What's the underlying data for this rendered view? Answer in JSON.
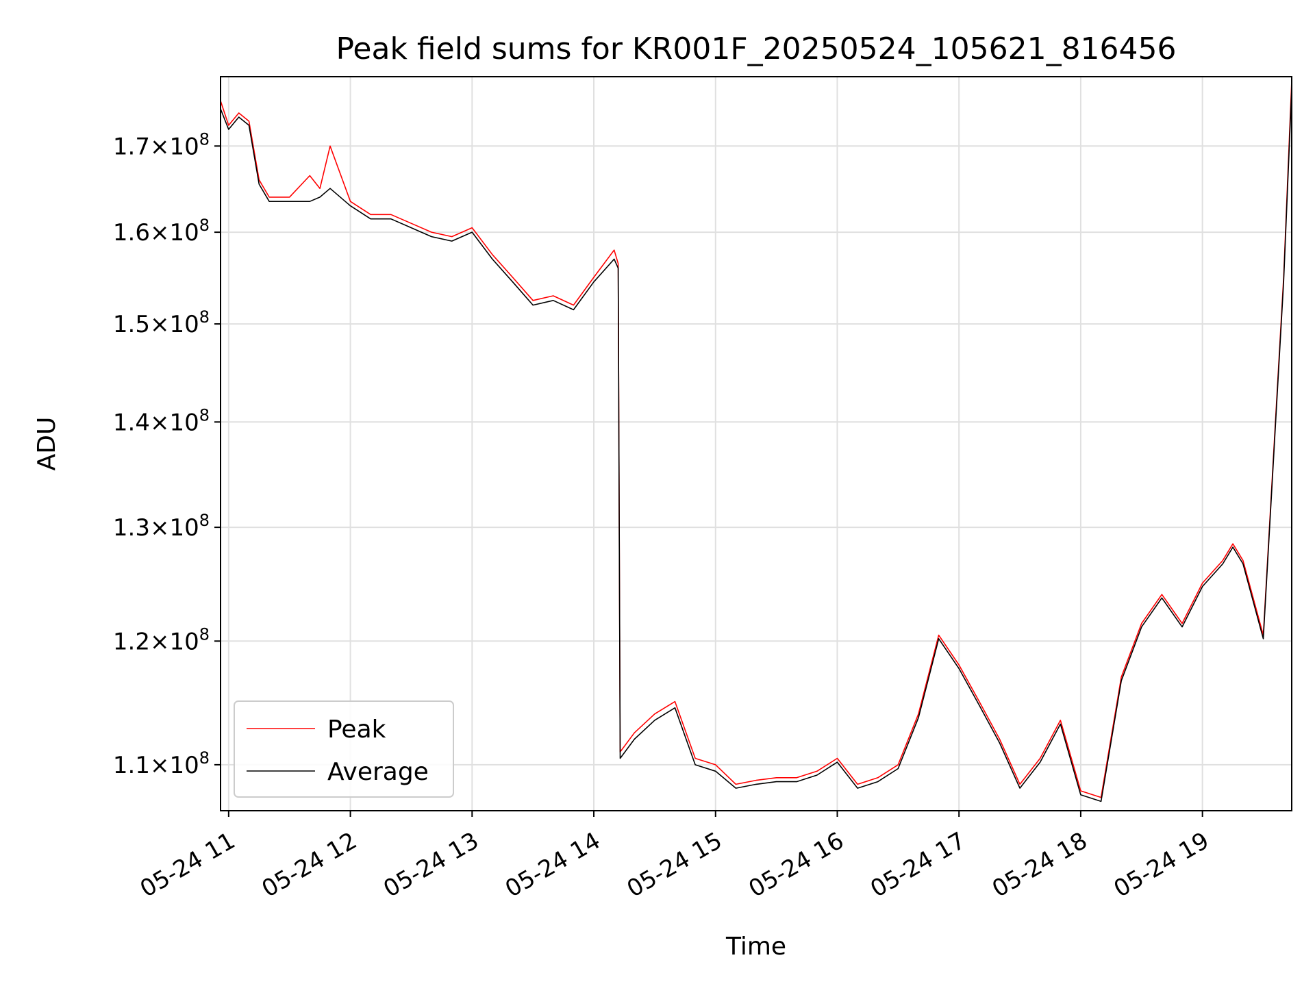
{
  "chart_data": {
    "type": "line",
    "title": "Peak field sums for KR001F_20250524_105621_816456",
    "xlabel": "Time",
    "ylabel": "ADU",
    "yscale": "log",
    "ylim": [
      106500000,
      178500000
    ],
    "xlim": [
      "2025-05-24 10:56",
      "2025-05-24 19:44"
    ],
    "grid": true,
    "legend_position": "lower left",
    "x_tick_labels": [
      "05-24 11",
      "05-24 12",
      "05-24 13",
      "05-24 14",
      "05-24 15",
      "05-24 16",
      "05-24 17",
      "05-24 18",
      "05-24 19"
    ],
    "y_ticks": [
      {
        "value": 110000000,
        "mantissa": "1.1",
        "exponent": "8"
      },
      {
        "value": 120000000,
        "mantissa": "1.2",
        "exponent": "8"
      },
      {
        "value": 130000000,
        "mantissa": "1.3",
        "exponent": "8"
      },
      {
        "value": 140000000,
        "mantissa": "1.4",
        "exponent": "8"
      },
      {
        "value": 150000000,
        "mantissa": "1.5",
        "exponent": "8"
      },
      {
        "value": 160000000,
        "mantissa": "1.6",
        "exponent": "8"
      },
      {
        "value": 170000000,
        "mantissa": "1.7",
        "exponent": "8"
      }
    ],
    "y_tick_times": "×10",
    "series": [
      {
        "name": "Peak",
        "color": "#ff0000",
        "x": [
          "10:56",
          "11:00",
          "11:05",
          "11:10",
          "11:15",
          "11:20",
          "11:30",
          "11:40",
          "11:45",
          "11:50",
          "12:00",
          "12:10",
          "12:20",
          "12:30",
          "12:40",
          "12:50",
          "13:00",
          "13:10",
          "13:20",
          "13:30",
          "13:40",
          "13:50",
          "14:00",
          "14:10",
          "14:12",
          "14:13",
          "14:20",
          "14:30",
          "14:40",
          "14:50",
          "15:00",
          "15:10",
          "15:20",
          "15:30",
          "15:40",
          "15:50",
          "16:00",
          "16:10",
          "16:20",
          "16:30",
          "16:40",
          "16:50",
          "17:00",
          "17:10",
          "17:20",
          "17:30",
          "17:40",
          "17:50",
          "18:00",
          "18:10",
          "18:20",
          "18:30",
          "18:40",
          "18:50",
          "19:00",
          "19:10",
          "19:15",
          "19:20",
          "19:30",
          "19:40",
          "19:44"
        ],
        "y": [
          175500000,
          172500000,
          174000000,
          173000000,
          166000000,
          164000000,
          164000000,
          166500000,
          165000000,
          170000000,
          163500000,
          162000000,
          162000000,
          161000000,
          160000000,
          159500000,
          160500000,
          157500000,
          155000000,
          152500000,
          153000000,
          152000000,
          155000000,
          158000000,
          156500000,
          111000000,
          112500000,
          114000000,
          115000000,
          110500000,
          110000000,
          108500000,
          108800000,
          109000000,
          109000000,
          109500000,
          110500000,
          108500000,
          109000000,
          110000000,
          114000000,
          120500000,
          118000000,
          115000000,
          112000000,
          108500000,
          110500000,
          113500000,
          108000000,
          107500000,
          117000000,
          121500000,
          124000000,
          121500000,
          125000000,
          127000000,
          128500000,
          127000000,
          120500000,
          155000000,
          178000000
        ]
      },
      {
        "name": "Average",
        "color": "#000000",
        "x": [
          "10:56",
          "11:00",
          "11:05",
          "11:10",
          "11:15",
          "11:20",
          "11:30",
          "11:40",
          "11:45",
          "11:50",
          "12:00",
          "12:10",
          "12:20",
          "12:30",
          "12:40",
          "12:50",
          "13:00",
          "13:10",
          "13:20",
          "13:30",
          "13:40",
          "13:50",
          "14:00",
          "14:10",
          "14:12",
          "14:13",
          "14:20",
          "14:30",
          "14:40",
          "14:50",
          "15:00",
          "15:10",
          "15:20",
          "15:30",
          "15:40",
          "15:50",
          "16:00",
          "16:10",
          "16:20",
          "16:30",
          "16:40",
          "16:50",
          "17:00",
          "17:10",
          "17:20",
          "17:30",
          "17:40",
          "17:50",
          "18:00",
          "18:10",
          "18:20",
          "18:30",
          "18:40",
          "18:50",
          "19:00",
          "19:10",
          "19:15",
          "19:20",
          "19:30",
          "19:40",
          "19:44"
        ],
        "y": [
          174500000,
          172000000,
          173500000,
          172500000,
          165500000,
          163500000,
          163500000,
          163500000,
          164000000,
          165000000,
          163000000,
          161500000,
          161500000,
          160500000,
          159500000,
          159000000,
          160000000,
          157000000,
          154500000,
          152000000,
          152500000,
          151500000,
          154500000,
          157000000,
          156000000,
          110500000,
          112000000,
          113500000,
          114500000,
          110000000,
          109500000,
          108200000,
          108500000,
          108700000,
          108700000,
          109200000,
          110200000,
          108200000,
          108700000,
          109700000,
          113700000,
          120200000,
          117700000,
          114700000,
          111700000,
          108200000,
          110200000,
          113200000,
          107700000,
          107200000,
          116700000,
          121200000,
          123700000,
          121200000,
          124700000,
          126700000,
          128200000,
          126700000,
          120200000,
          154500000,
          177000000
        ]
      }
    ]
  }
}
